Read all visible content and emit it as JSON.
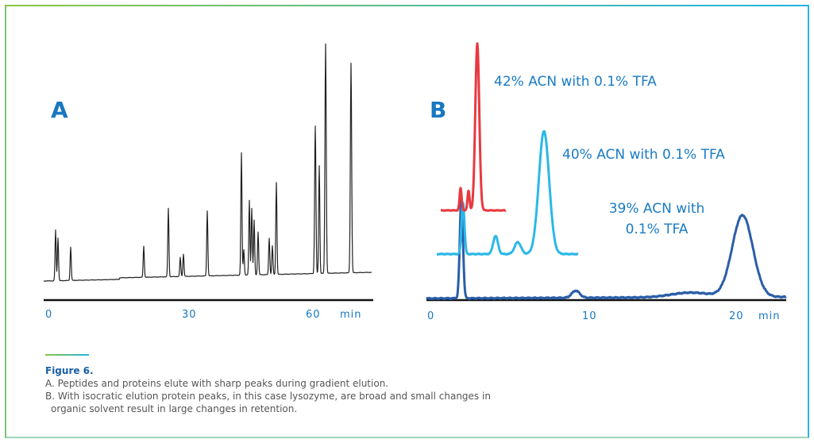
{
  "panels": [
    {
      "label": "A",
      "ticks": [
        "0",
        "30",
        "60"
      ],
      "unit": "min"
    },
    {
      "label": "B",
      "ticks": [
        "0",
        "10",
        "20"
      ],
      "unit": "min",
      "traces": [
        "42% ACN with 0.1% TFA",
        "40% ACN with 0.1% TFA",
        "39% ACN with",
        "0.1% TFA"
      ]
    }
  ],
  "caption": {
    "title": "Figure 6.",
    "lines": [
      "A. Peptides and proteins elute with sharp peaks during gradient elution.",
      "B. With isocratic elution protein peaks, in this case lysozyme, are broad and small changes in",
      "organic solvent result in large changes in retention."
    ]
  }
}
